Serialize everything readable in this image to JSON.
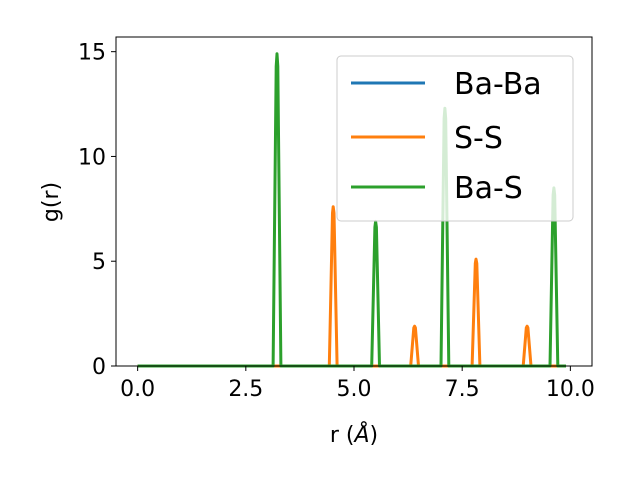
{
  "chart_data": {
    "type": "line",
    "xlabel": "r (Å)",
    "ylabel": "g(r)",
    "xlim": [
      -0.5,
      10.5
    ],
    "ylim": [
      0,
      15.7
    ],
    "xticks": [
      0.0,
      2.5,
      5.0,
      7.5,
      10.0
    ],
    "xtick_labels": [
      "0.0",
      "2.5",
      "5.0",
      "7.5",
      "10.0"
    ],
    "yticks": [
      0,
      5,
      10,
      15
    ],
    "ytick_labels": [
      "0",
      "5",
      "10",
      "15"
    ],
    "grid": false,
    "legend_position": "upper right",
    "x_range": [
      0.0,
      9.9
    ],
    "series": [
      {
        "name": "Ba-Ba",
        "color": "#1f77b4",
        "peaks": []
      },
      {
        "name": "S-S",
        "color": "#ff7f0e",
        "peaks": [
          {
            "x": 4.52,
            "y": 7.6
          },
          {
            "x": 6.4,
            "y": 1.9
          },
          {
            "x": 7.82,
            "y": 5.1
          },
          {
            "x": 9.0,
            "y": 1.9
          }
        ]
      },
      {
        "name": "Ba-S",
        "color": "#2ca02c",
        "peaks": [
          {
            "x": 3.22,
            "y": 14.9
          },
          {
            "x": 5.5,
            "y": 6.9
          },
          {
            "x": 7.1,
            "y": 12.3
          },
          {
            "x": 9.62,
            "y": 8.5
          }
        ]
      }
    ]
  }
}
